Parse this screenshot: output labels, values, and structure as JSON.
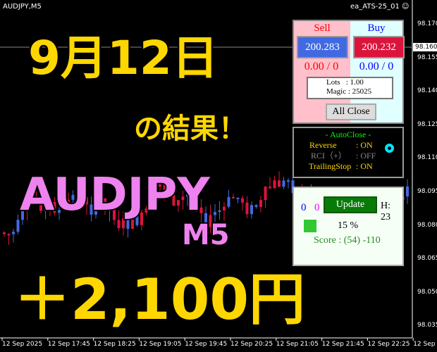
{
  "header": {
    "symbol": "AUDJPY,M5",
    "ea_name": "ea_ATS-25_01"
  },
  "price_axis": {
    "labels": [
      "98.170",
      "98.155",
      "98.140",
      "98.125",
      "98.110",
      "98.095",
      "98.080",
      "98.065",
      "98.050",
      "98.035"
    ],
    "current": "98.160"
  },
  "time_axis": {
    "labels": [
      "12 Sep 2025",
      "12 Sep 17:45",
      "12 Sep 18:25",
      "12 Sep 19:05",
      "12 Sep 19:45",
      "12 Sep 20:25",
      "12 Sep 21:05",
      "12 Sep 21:45",
      "12 Sep 22:25",
      "12 Sep 23"
    ]
  },
  "overlay": {
    "date": "9月12日",
    "result": "の結果！",
    "pair": "AUDJPY",
    "tf": "M5",
    "profit": "＋2,100円"
  },
  "panel": {
    "sell_label": "Sell",
    "buy_label": "Buy",
    "sell_price": "200.283",
    "buy_price": "200.232",
    "sell_pos": "0.00 / 0",
    "buy_pos": "0.00 / 0",
    "lots": "Lots   : 1.00",
    "magic": "Magic : 25025",
    "all_close": "All Close"
  },
  "autoclose": {
    "title": "- AutoClose -",
    "rows": [
      {
        "label": "Reverse",
        "value": ": ON"
      },
      {
        "label": "RCI（+）",
        "value": ": OFF"
      },
      {
        "label": "TrailingStop",
        "value": ": ON"
      }
    ]
  },
  "score": {
    "count_blue": "0",
    "count_pink": "0",
    "update": "Update",
    "hour": "H: 23",
    "percent": "15 %",
    "score": "Score : (54) -110"
  },
  "colors": {
    "bull": "#4169e1",
    "bear": "#dc143c",
    "yellow": "#ffd700",
    "pink": "#ee82ee"
  }
}
